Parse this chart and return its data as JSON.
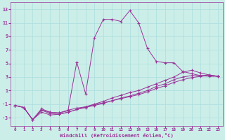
{
  "title": "",
  "xlabel": "Windchill (Refroidissement éolien,°C)",
  "ylabel": "",
  "bg_color": "#cceee8",
  "line_color": "#993399",
  "grid_color": "#aadddd",
  "xlim": [
    -0.5,
    23.5
  ],
  "ylim": [
    -4.2,
    14.0
  ],
  "xticks": [
    0,
    1,
    2,
    3,
    4,
    5,
    6,
    7,
    8,
    9,
    10,
    11,
    12,
    13,
    14,
    15,
    16,
    17,
    18,
    19,
    20,
    21,
    22,
    23
  ],
  "yticks": [
    -3,
    -1,
    1,
    3,
    5,
    7,
    9,
    11,
    13
  ],
  "series": [
    {
      "x": [
        0,
        1,
        2,
        3,
        4,
        5,
        6,
        7,
        8,
        9,
        10,
        11,
        12,
        13,
        14,
        15,
        16,
        17,
        18,
        19,
        20,
        21,
        22,
        23
      ],
      "y": [
        -1.2,
        -1.5,
        -3.3,
        -1.7,
        -2.2,
        -2.3,
        -1.9,
        -1.6,
        -1.4,
        -1.1,
        -0.8,
        -0.5,
        -0.2,
        0.1,
        0.4,
        0.8,
        1.3,
        1.7,
        2.2,
        2.6,
        2.9,
        3.1,
        3.2,
        3.1
      ]
    },
    {
      "x": [
        0,
        1,
        2,
        3,
        4,
        5,
        6,
        7,
        8,
        9,
        10,
        11,
        12,
        13,
        14,
        15,
        16,
        17,
        18,
        19,
        20,
        21,
        22,
        23
      ],
      "y": [
        -1.2,
        -1.5,
        -3.3,
        -1.9,
        -2.4,
        -2.5,
        -2.2,
        -1.8,
        -1.5,
        -1.2,
        -0.9,
        -0.5,
        -0.1,
        0.2,
        0.6,
        1.0,
        1.6,
        2.0,
        2.6,
        3.0,
        3.2,
        3.2,
        3.3,
        3.1
      ]
    },
    {
      "x": [
        0,
        1,
        2,
        3,
        4,
        5,
        6,
        7,
        8,
        9,
        10,
        11,
        12,
        13,
        14,
        15,
        16,
        17,
        18,
        19,
        20,
        21,
        22,
        23
      ],
      "y": [
        -1.2,
        -1.5,
        -3.3,
        -2.2,
        -2.6,
        -2.5,
        -2.2,
        -1.8,
        -1.4,
        -1.0,
        -0.6,
        -0.1,
        0.3,
        0.7,
        1.0,
        1.5,
        2.0,
        2.5,
        3.0,
        3.7,
        4.0,
        3.6,
        3.3,
        3.1
      ]
    },
    {
      "x": [
        0,
        1,
        2,
        3,
        4,
        5,
        6,
        7,
        8,
        9,
        10,
        11,
        12,
        13,
        14,
        15,
        16,
        17,
        18,
        19,
        20,
        21,
        22,
        23
      ],
      "y": [
        -1.2,
        -1.5,
        -3.3,
        -1.9,
        -2.2,
        -2.3,
        -2.0,
        5.2,
        0.5,
        8.8,
        11.5,
        11.5,
        11.2,
        12.8,
        11.0,
        7.2,
        5.3,
        5.1,
        5.1,
        3.8,
        3.5,
        3.2,
        3.1,
        3.1
      ]
    }
  ]
}
